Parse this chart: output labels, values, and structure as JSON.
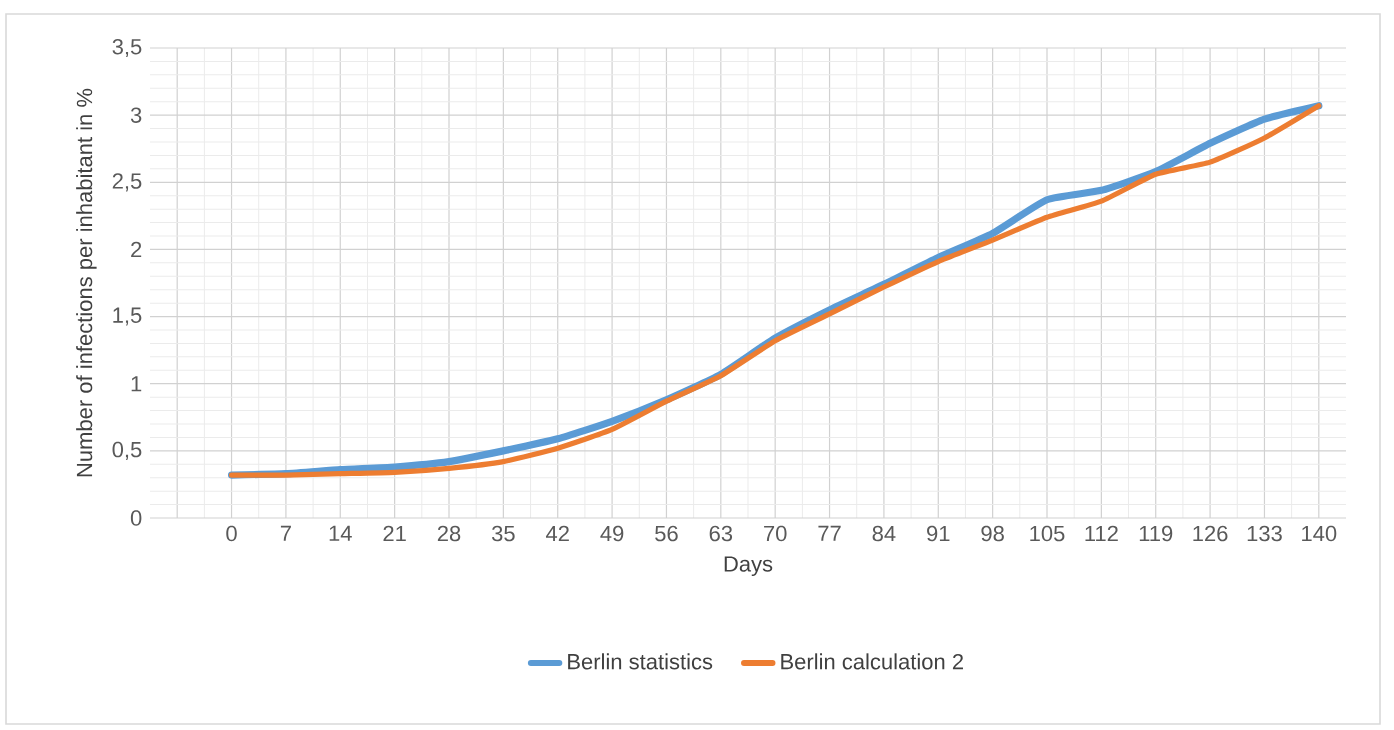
{
  "chart_data": {
    "type": "line",
    "categories": [
      null,
      "0",
      "7",
      "14",
      "21",
      "28",
      "35",
      "42",
      "49",
      "56",
      "63",
      "70",
      "77",
      "84",
      "91",
      "98",
      "105",
      "112",
      "119",
      "126",
      "133",
      "140"
    ],
    "series": [
      {
        "name": "Berlin statistics",
        "color": "#5b9bd5",
        "values": [
          null,
          0.32,
          0.33,
          0.36,
          0.38,
          0.42,
          0.5,
          0.59,
          0.72,
          0.88,
          1.07,
          1.34,
          1.55,
          1.74,
          1.94,
          2.12,
          2.37,
          2.44,
          2.58,
          2.79,
          2.97,
          3.07
        ]
      },
      {
        "name": "Berlin calculation 2",
        "color": "#ed7d31",
        "values": [
          null,
          0.32,
          0.32,
          0.33,
          0.34,
          0.37,
          0.42,
          0.52,
          0.66,
          0.87,
          1.06,
          1.32,
          1.52,
          1.72,
          1.91,
          2.07,
          2.24,
          2.36,
          2.56,
          2.65,
          2.83,
          3.07
        ]
      }
    ],
    "xlabel": "Days",
    "ylabel": "Number of infections per inhabitant in %",
    "ylim": [
      0,
      3.5
    ],
    "yticks": [
      0,
      {
        "value": 0.5,
        "label": "0,5"
      },
      1,
      {
        "value": 1.5,
        "label": "1,5"
      },
      2,
      {
        "value": 2.5,
        "label": "2,5"
      },
      3,
      {
        "value": 3.5,
        "label": "3,5"
      }
    ],
    "grid": true,
    "legend": "bottom",
    "marker": "none",
    "line_style": "solid"
  }
}
